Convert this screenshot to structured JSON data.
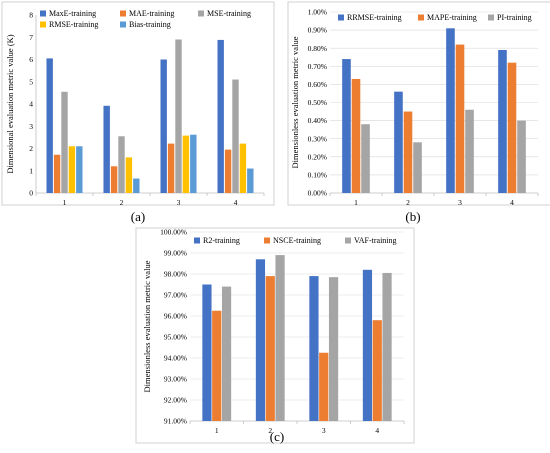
{
  "chart_data": [
    {
      "id": "a",
      "type": "bar",
      "panel_label": "(a)",
      "ylabel": "Dimensional evaluation metric value (K)",
      "categories": [
        "1",
        "2",
        "3",
        "4"
      ],
      "ylim": [
        0,
        8
      ],
      "yticks": [
        0,
        1,
        2,
        3,
        4,
        5,
        6,
        7,
        8
      ],
      "ytick_labels": [
        "0",
        "1",
        "2",
        "3",
        "4",
        "5",
        "6",
        "7",
        "8"
      ],
      "grid": false,
      "legend": "top",
      "series": [
        {
          "name": "MaxE-training",
          "color": "#4472c4",
          "values": [
            6.05,
            3.92,
            6.0,
            6.88
          ]
        },
        {
          "name": "MAE-training",
          "color": "#ed7d31",
          "values": [
            1.72,
            1.2,
            2.22,
            1.95
          ]
        },
        {
          "name": "MSE-training",
          "color": "#a5a5a5",
          "values": [
            4.55,
            2.55,
            6.9,
            5.1
          ]
        },
        {
          "name": "RMSE-training",
          "color": "#ffc000",
          "values": [
            2.1,
            1.6,
            2.58,
            2.22
          ]
        },
        {
          "name": "Bias-training",
          "color": "#5b9bd5",
          "values": [
            2.1,
            0.65,
            2.62,
            1.1
          ]
        }
      ]
    },
    {
      "id": "b",
      "type": "bar",
      "panel_label": "(b)",
      "ylabel": "Dimensionless evaluation metric value",
      "categories": [
        "1",
        "2",
        "3",
        "4"
      ],
      "ylim": [
        0,
        1.0
      ],
      "yticks": [
        0,
        0.1,
        0.2,
        0.3,
        0.4,
        0.5,
        0.6,
        0.7,
        0.8,
        0.9,
        1.0
      ],
      "ytick_labels": [
        "0.00%",
        "0.10%",
        "0.20%",
        "0.30%",
        "0.40%",
        "0.50%",
        "0.60%",
        "0.70%",
        "0.80%",
        "0.90%",
        "1.00%"
      ],
      "grid": true,
      "legend": "top",
      "series": [
        {
          "name": "RRMSE-training",
          "color": "#4472c4",
          "values": [
            0.74,
            0.56,
            0.91,
            0.79
          ]
        },
        {
          "name": "MAPE-training",
          "color": "#ed7d31",
          "values": [
            0.63,
            0.45,
            0.82,
            0.72
          ]
        },
        {
          "name": "PI-training",
          "color": "#a5a5a5",
          "values": [
            0.38,
            0.28,
            0.46,
            0.4
          ]
        }
      ]
    },
    {
      "id": "c",
      "type": "bar",
      "panel_label": "(c)",
      "ylabel": "Dimensionless evaluation metric value",
      "categories": [
        "1",
        "2",
        "3",
        "4"
      ],
      "ylim": [
        91,
        100
      ],
      "yticks": [
        91,
        92,
        93,
        94,
        95,
        96,
        97,
        98,
        99,
        100
      ],
      "ytick_labels": [
        "91.00%",
        "92.00%",
        "93.00%",
        "94.00%",
        "95.00%",
        "96.00%",
        "97.00%",
        "98.00%",
        "99.00%",
        "100.00%"
      ],
      "grid": true,
      "legend": "top",
      "series": [
        {
          "name": "R2-training",
          "color": "#4472c4",
          "values": [
            97.5,
            98.7,
            97.9,
            98.2
          ]
        },
        {
          "name": "NSCE-training",
          "color": "#ed7d31",
          "values": [
            96.25,
            97.9,
            94.25,
            95.8
          ]
        },
        {
          "name": "VAF-training",
          "color": "#a5a5a5",
          "values": [
            97.4,
            98.9,
            97.85,
            98.05
          ]
        }
      ]
    }
  ]
}
